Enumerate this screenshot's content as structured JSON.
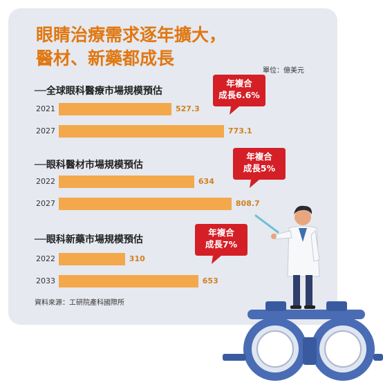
{
  "title_lines": [
    "眼睛治療需求逐年擴大，",
    "醫材、新藥都成長"
  ],
  "unit": "單位：億美元",
  "source": "資料來源：工研院產科國際所",
  "colors": {
    "bar": "#f3a84b",
    "title": "#e07812",
    "bubble": "#d41f26",
    "card": "#e6e9f0"
  },
  "chart_data": [
    {
      "type": "bar",
      "title": "──全球眼科醫療市場規模預估",
      "categories": [
        "2021",
        "2027"
      ],
      "values": [
        527.3,
        773.1
      ],
      "value_labels": [
        "527.3",
        "773.1"
      ],
      "annotation": [
        "年複合",
        "成長6.6%"
      ],
      "xlim": [
        0,
        809
      ]
    },
    {
      "type": "bar",
      "title": "──眼科醫材市場規模預估",
      "categories": [
        "2022",
        "2027"
      ],
      "values": [
        634,
        808.7
      ],
      "value_labels": [
        "634",
        "808.7"
      ],
      "annotation": [
        "年複合",
        "成長5%"
      ],
      "xlim": [
        0,
        809
      ]
    },
    {
      "type": "bar",
      "title": "──眼科新藥市場規模預估",
      "categories": [
        "2022",
        "2033"
      ],
      "values": [
        310,
        653
      ],
      "value_labels": [
        "310",
        "653"
      ],
      "annotation": [
        "年複合",
        "成長7%"
      ],
      "xlim": [
        0,
        809
      ]
    }
  ]
}
